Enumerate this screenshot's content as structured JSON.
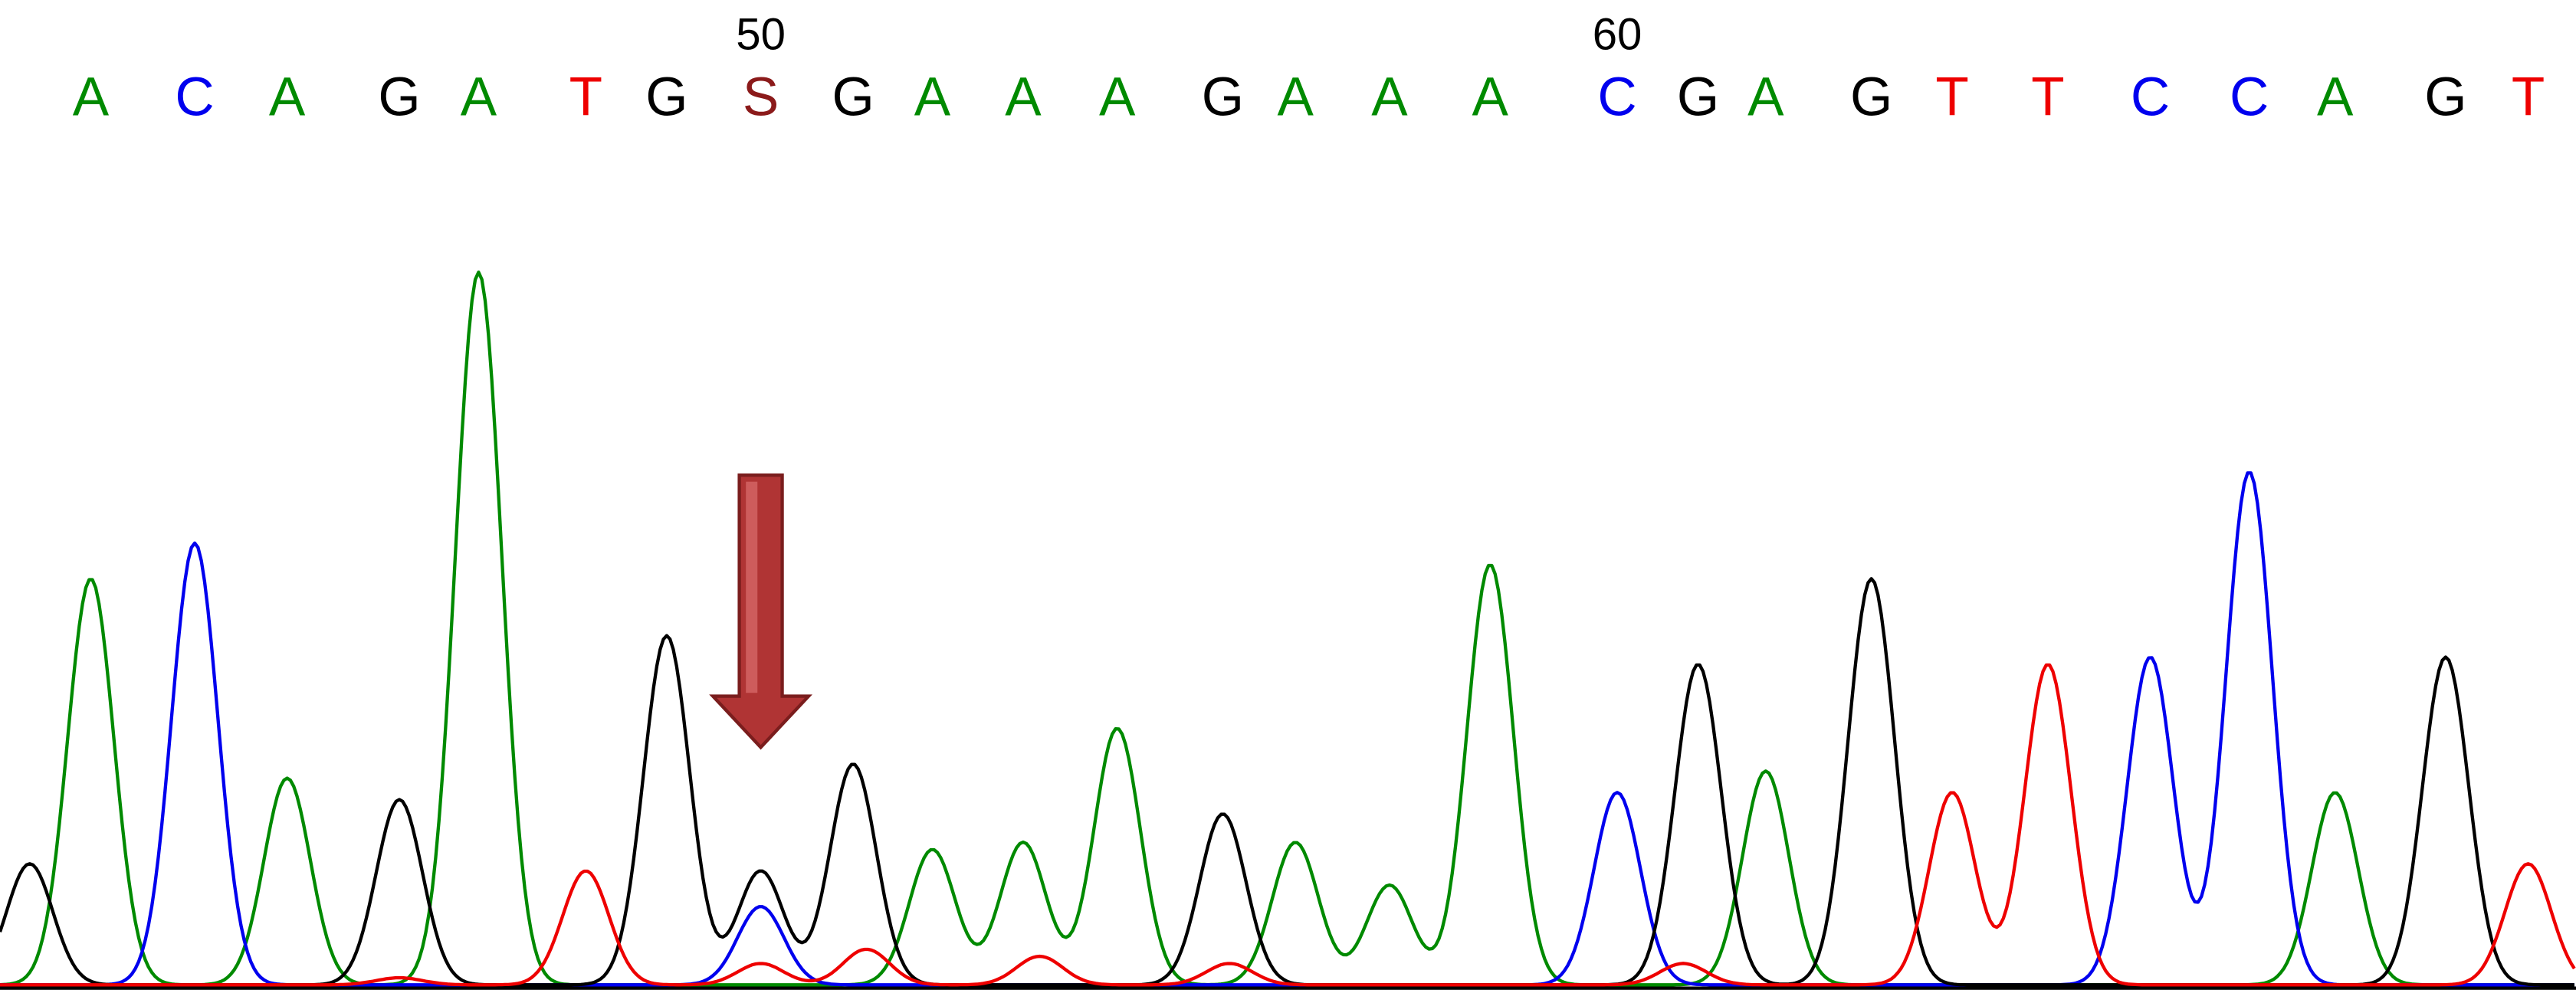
{
  "chart_data": {
    "type": "line",
    "title": "",
    "xlabel": "",
    "ylabel": "",
    "position_labels": [
      {
        "label": "50",
        "base_index": 7
      },
      {
        "label": "60",
        "base_index": 16
      }
    ],
    "base_colors": {
      "A": "#008a00",
      "C": "#0000ee",
      "G": "#000000",
      "T": "#ee0000",
      "S": "#8b1a1a"
    },
    "bases": [
      {
        "call": "A",
        "x": 55
      },
      {
        "call": "C",
        "x": 118
      },
      {
        "call": "A",
        "x": 174
      },
      {
        "call": "G",
        "x": 242
      },
      {
        "call": "A",
        "x": 290
      },
      {
        "call": "T",
        "x": 355
      },
      {
        "call": "G",
        "x": 404
      },
      {
        "call": "S",
        "x": 461
      },
      {
        "call": "G",
        "x": 517
      },
      {
        "call": "A",
        "x": 565
      },
      {
        "call": "A",
        "x": 620
      },
      {
        "call": "A",
        "x": 677
      },
      {
        "call": "G",
        "x": 741
      },
      {
        "call": "A",
        "x": 785
      },
      {
        "call": "A",
        "x": 842
      },
      {
        "call": "A",
        "x": 903
      },
      {
        "call": "C",
        "x": 980
      },
      {
        "call": "G",
        "x": 1029
      },
      {
        "call": "A",
        "x": 1070
      },
      {
        "call": "G",
        "x": 1134
      },
      {
        "call": "T",
        "x": 1183
      },
      {
        "call": "T",
        "x": 1241
      },
      {
        "call": "C",
        "x": 1303
      },
      {
        "call": "C",
        "x": 1363
      },
      {
        "call": "A",
        "x": 1415
      },
      {
        "call": "G",
        "x": 1482
      },
      {
        "call": "T",
        "x": 1532
      }
    ],
    "ylim": [
      0,
      100
    ],
    "series": [
      {
        "channel": "A",
        "peaks": [
          [
            55,
            57
          ],
          [
            174,
            29
          ],
          [
            290,
            100
          ],
          [
            565,
            19
          ],
          [
            620,
            20
          ],
          [
            677,
            36
          ],
          [
            785,
            20
          ],
          [
            842,
            14
          ],
          [
            903,
            59
          ],
          [
            1070,
            30
          ],
          [
            1415,
            27
          ]
        ]
      },
      {
        "channel": "C",
        "peaks": [
          [
            118,
            62
          ],
          [
            461,
            11
          ],
          [
            980,
            27
          ],
          [
            1303,
            46
          ],
          [
            1363,
            72
          ]
        ]
      },
      {
        "channel": "G",
        "peaks": [
          [
            18,
            17
          ],
          [
            242,
            26
          ],
          [
            404,
            49
          ],
          [
            461,
            16
          ],
          [
            517,
            31
          ],
          [
            741,
            24
          ],
          [
            1029,
            45
          ],
          [
            1134,
            57
          ],
          [
            1482,
            46
          ]
        ]
      },
      {
        "channel": "T",
        "peaks": [
          [
            242,
            1
          ],
          [
            355,
            16
          ],
          [
            461,
            3
          ],
          [
            525,
            5
          ],
          [
            630,
            4
          ],
          [
            745,
            3
          ],
          [
            1020,
            3
          ],
          [
            1183,
            27
          ],
          [
            1241,
            45
          ],
          [
            1532,
            17
          ]
        ]
      }
    ],
    "annotations": [
      {
        "kind": "arrow",
        "target_base_index": 7,
        "color": "#b03434"
      }
    ]
  }
}
